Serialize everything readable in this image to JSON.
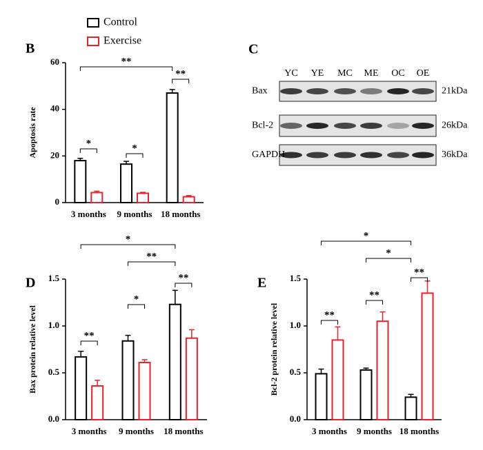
{
  "chart_data": [
    {
      "type": "bar",
      "panel": "B",
      "y_label": "Apoptosis rate",
      "categories": [
        "3 months",
        "9 months",
        "18 months"
      ],
      "series": [
        {
          "name": "Control",
          "color": "#000000",
          "values": [
            18,
            16.5,
            47
          ],
          "errors": [
            1,
            1.2,
            1.5
          ]
        },
        {
          "name": "Exercise",
          "color": "#e8212a",
          "values": [
            4.3,
            4,
            2.5
          ],
          "errors": [
            0.6,
            0.4,
            0.5
          ]
        }
      ],
      "ylim": [
        0,
        60
      ],
      "yticks": [
        0,
        20,
        40,
        60
      ],
      "annotations": [
        "*",
        "*",
        "**",
        "**"
      ]
    },
    {
      "type": "bar",
      "panel": "D",
      "y_label": "Bax protein relative level",
      "categories": [
        "3 months",
        "9 months",
        "18 months"
      ],
      "series": [
        {
          "name": "Control",
          "color": "#000000",
          "values": [
            0.67,
            0.84,
            1.23
          ],
          "errors": [
            0.06,
            0.06,
            0.15
          ]
        },
        {
          "name": "Exercise",
          "color": "#e8212a",
          "values": [
            0.36,
            0.61,
            0.87
          ],
          "errors": [
            0.06,
            0.03,
            0.09
          ]
        }
      ],
      "ylim": [
        0,
        1.5
      ],
      "yticks": [
        {
          "value": 0,
          "label": "0.0"
        },
        {
          "value": 0.5,
          "label": "0.5"
        },
        {
          "value": 1,
          "label": "1.0"
        },
        {
          "value": 1.5,
          "label": "1.5"
        }
      ],
      "annotations": [
        "**",
        "*",
        "**",
        "**",
        "*"
      ]
    },
    {
      "type": "bar",
      "panel": "E",
      "y_label": "Bcl-2 protein relative level",
      "categories": [
        "3 months",
        "9 months",
        "18 months"
      ],
      "series": [
        {
          "name": "Control",
          "color": "#000000",
          "values": [
            0.49,
            0.53,
            0.24
          ],
          "errors": [
            0.05,
            0.02,
            0.03
          ]
        },
        {
          "name": "Exercise",
          "color": "#e8212a",
          "values": [
            0.85,
            1.05,
            1.35
          ],
          "errors": [
            0.14,
            0.1,
            0.13
          ]
        }
      ],
      "ylim": [
        0,
        1.5
      ],
      "yticks": [
        {
          "value": 0,
          "label": "0.0"
        },
        {
          "value": 0.5,
          "label": "0.5"
        },
        {
          "value": 1,
          "label": "1.0"
        },
        {
          "value": 1.5,
          "label": "1.5"
        }
      ],
      "annotations": [
        "**",
        "**",
        "**",
        "*",
        "*"
      ]
    }
  ],
  "blot": {
    "panel": "C",
    "lanes": [
      "YC",
      "YE",
      "MC",
      "ME",
      "OC",
      "OE"
    ],
    "rows": [
      {
        "protein": "Bax",
        "size": "21kDa"
      },
      {
        "protein": "Bcl-2",
        "size": "26kDa"
      },
      {
        "protein": "GAPDH",
        "size": "36kDa"
      }
    ]
  }
}
